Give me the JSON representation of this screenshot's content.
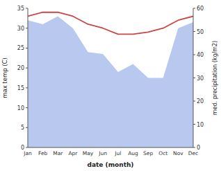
{
  "chart_data": {
    "type": "line",
    "xlabel": "date (month)",
    "ylabel": "max temp (C)",
    "y2label": "med. precipitation (kg/m2)",
    "categories": [
      "Jan",
      "Feb",
      "Mar",
      "Apr",
      "May",
      "Jun",
      "Jul",
      "Aug",
      "Sep",
      "Oct",
      "Nov",
      "Dec"
    ],
    "series": [
      {
        "type": "area",
        "color": "#b8c8ee",
        "values": [
          32,
          31,
          33,
          30,
          24,
          23.5,
          19,
          21,
          17.5,
          17.5,
          30,
          31.5
        ]
      },
      {
        "type": "line",
        "color": "#cc4444",
        "values": [
          33,
          34,
          34,
          33,
          31,
          30,
          28.5,
          28.5,
          29,
          30,
          32,
          33
        ]
      }
    ],
    "ylim": [
      0,
      35
    ],
    "yticks": [
      0,
      5,
      10,
      15,
      20,
      25,
      30,
      35
    ],
    "y2lim": [
      0,
      60
    ],
    "y2ticks": [
      0,
      10,
      20,
      30,
      40,
      50,
      60
    ],
    "grid": false
  }
}
